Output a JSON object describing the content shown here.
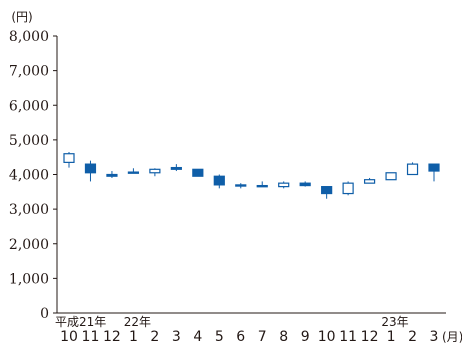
{
  "chart_data": {
    "type": "candlestick",
    "title": "",
    "ylabel": "(円)",
    "xlabel": "(月)",
    "ylim": [
      0,
      8000
    ],
    "y_ticks": [
      "0",
      "1,000",
      "2,000",
      "3,000",
      "4,000",
      "5,000",
      "6,000",
      "7,000",
      "8,000"
    ],
    "y_tick_values": [
      0,
      1000,
      2000,
      3000,
      4000,
      5000,
      6000,
      7000,
      8000
    ],
    "categories": [
      "10",
      "11",
      "12",
      "1",
      "2",
      "3",
      "4",
      "5",
      "6",
      "7",
      "8",
      "9",
      "10",
      "11",
      "12",
      "1",
      "2",
      "3"
    ],
    "year_labels": [
      {
        "index": 0,
        "text": "平成21年"
      },
      {
        "index": 3,
        "text": "22年"
      },
      {
        "index": 15,
        "text": "23年"
      }
    ],
    "candles": [
      {
        "open": 4350,
        "close": 4600,
        "high": 4650,
        "low": 4200
      },
      {
        "open": 4300,
        "close": 4050,
        "high": 4400,
        "low": 3800
      },
      {
        "open": 4000,
        "close": 3950,
        "high": 4100,
        "low": 3900
      },
      {
        "open": 4070,
        "close": 4070,
        "high": 4180,
        "low": 4050
      },
      {
        "open": 4050,
        "close": 4150,
        "high": 4180,
        "low": 3950
      },
      {
        "open": 4200,
        "close": 4150,
        "high": 4300,
        "low": 4100
      },
      {
        "open": 4150,
        "close": 3950,
        "high": 4150,
        "low": 3950
      },
      {
        "open": 3950,
        "close": 3700,
        "high": 4000,
        "low": 3600
      },
      {
        "open": 3700,
        "close": 3680,
        "high": 3750,
        "low": 3600
      },
      {
        "open": 3680,
        "close": 3680,
        "high": 3800,
        "low": 3650
      },
      {
        "open": 3650,
        "close": 3750,
        "high": 3800,
        "low": 3600
      },
      {
        "open": 3750,
        "close": 3680,
        "high": 3800,
        "low": 3650
      },
      {
        "open": 3650,
        "close": 3450,
        "high": 3650,
        "low": 3300
      },
      {
        "open": 3450,
        "close": 3750,
        "high": 3800,
        "low": 3400
      },
      {
        "open": 3750,
        "close": 3850,
        "high": 3900,
        "low": 3750
      },
      {
        "open": 3850,
        "close": 4050,
        "high": 4050,
        "low": 3850
      },
      {
        "open": 4000,
        "close": 4300,
        "high": 4350,
        "low": 4000
      },
      {
        "open": 4300,
        "close": 4100,
        "high": 4300,
        "low": 3800
      }
    ],
    "grid": false,
    "colors": {
      "up": "#ffffff",
      "down": "#0f5ea8",
      "stroke": "#0f5ea8",
      "axis": "#231815"
    }
  }
}
